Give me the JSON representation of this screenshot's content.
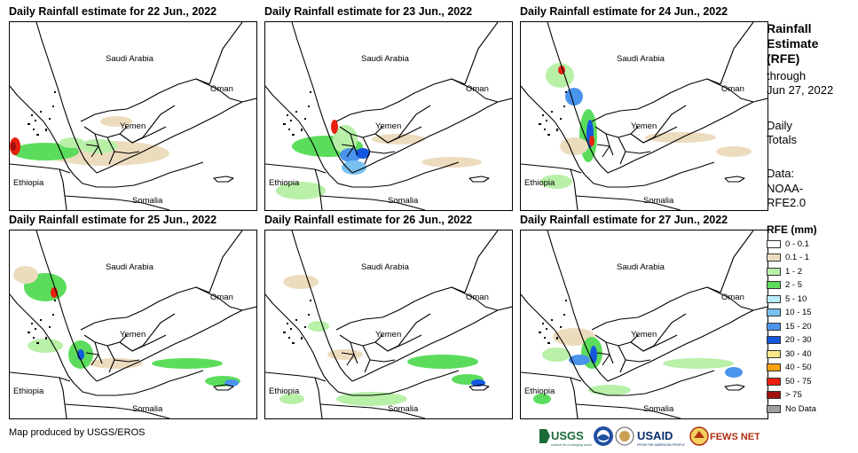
{
  "panels": [
    {
      "title": "Daily Rainfall estimate for 22 Jun., 2022"
    },
    {
      "title": "Daily Rainfall estimate for 23 Jun., 2022"
    },
    {
      "title": "Daily Rainfall estimate for 24 Jun., 2022"
    },
    {
      "title": "Daily Rainfall estimate for 25 Jun., 2022"
    },
    {
      "title": "Daily Rainfall estimate for 26 Jun., 2022"
    },
    {
      "title": "Daily Rainfall estimate for 27 Jun., 2022"
    }
  ],
  "map_labels": {
    "saudi": "Saudi Arabia",
    "oman": "Oman",
    "yemen": "Yemen",
    "ethiopia": "Ethiopia",
    "somalia": "Somalia"
  },
  "legend": {
    "title_lines": [
      "Rainfall",
      "Estimate",
      "(RFE)"
    ],
    "through_lines": [
      "through",
      "Jun 27, 2022"
    ],
    "totals_lines": [
      "Daily",
      "Totals"
    ],
    "data_lines": [
      "Data:",
      "NOAA-",
      "RFE2.0"
    ],
    "rfe_heading": "RFE (mm)",
    "items": [
      {
        "label": "0 - 0.1",
        "color": "#ffffff"
      },
      {
        "label": "0.1 - 1",
        "color": "#ecdcbe"
      },
      {
        "label": "1 - 2",
        "color": "#b8f0a8"
      },
      {
        "label": "2 - 5",
        "color": "#5cdc5c"
      },
      {
        "label": "5 - 10",
        "color": "#b8ecf8"
      },
      {
        "label": "10 - 15",
        "color": "#78c0f0"
      },
      {
        "label": "15 - 20",
        "color": "#4a94ec"
      },
      {
        "label": "20 - 30",
        "color": "#1458e0"
      },
      {
        "label": "30 - 40",
        "color": "#f8e888"
      },
      {
        "label": "40 - 50",
        "color": "#f8a010"
      },
      {
        "label": "50 - 75",
        "color": "#e82010"
      },
      {
        "label": "> 75",
        "color": "#a01010"
      },
      {
        "label": "No Data",
        "color": "#a0a0a0"
      }
    ]
  },
  "footer": {
    "credit": "Map produced by USGS/EROS"
  },
  "logos": {
    "usgs": "USGS",
    "usgs_tagline": "science for a changing world",
    "usaid": "USAID",
    "usaid_tagline": "FROM THE AMERICAN PEOPLE",
    "fews": "FEWS NET"
  }
}
